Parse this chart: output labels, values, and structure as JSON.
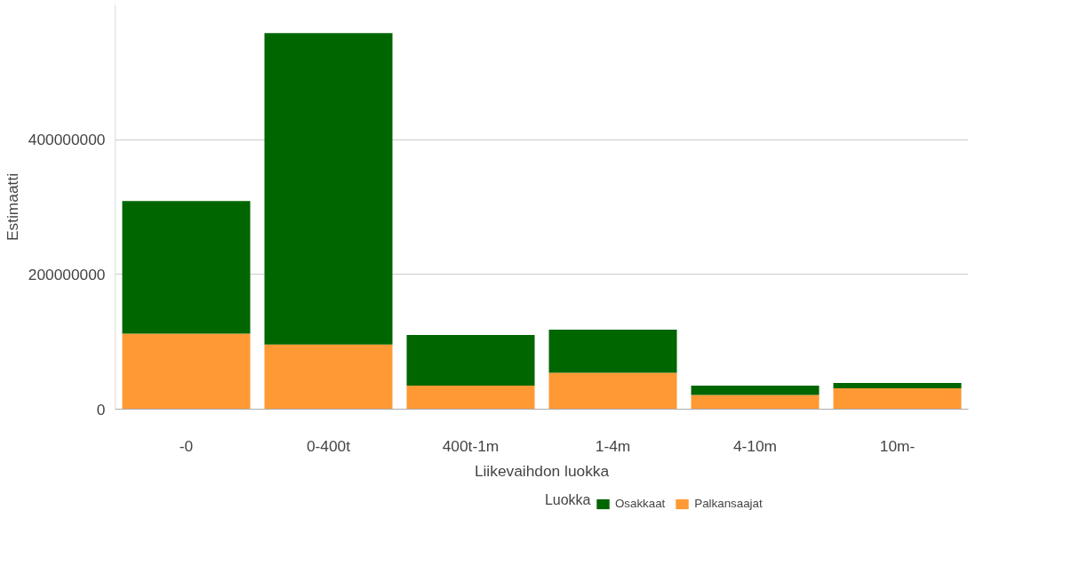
{
  "chart_data": {
    "type": "bar",
    "stacked": true,
    "xlabel": "Liikevaihdon luokka",
    "ylabel": "Estimaatti",
    "legend_title": "Luokka",
    "legend": "bottom",
    "grid": "y",
    "categories": [
      "-0",
      "0-400t",
      "400t-1m",
      "1-4m",
      "4-10m",
      "10m-"
    ],
    "ylim": [
      0,
      600000000
    ],
    "yticks": [
      0,
      200000000,
      400000000
    ],
    "series": [
      {
        "name": "Palkansaajat",
        "color": "#ff9933",
        "values": [
          112000000,
          96000000,
          35000000,
          54000000,
          21000000,
          31000000
        ]
      },
      {
        "name": "Osakkaat",
        "color": "#006600",
        "values": [
          197000000,
          462000000,
          75000000,
          64000000,
          14000000,
          8000000
        ]
      }
    ]
  }
}
